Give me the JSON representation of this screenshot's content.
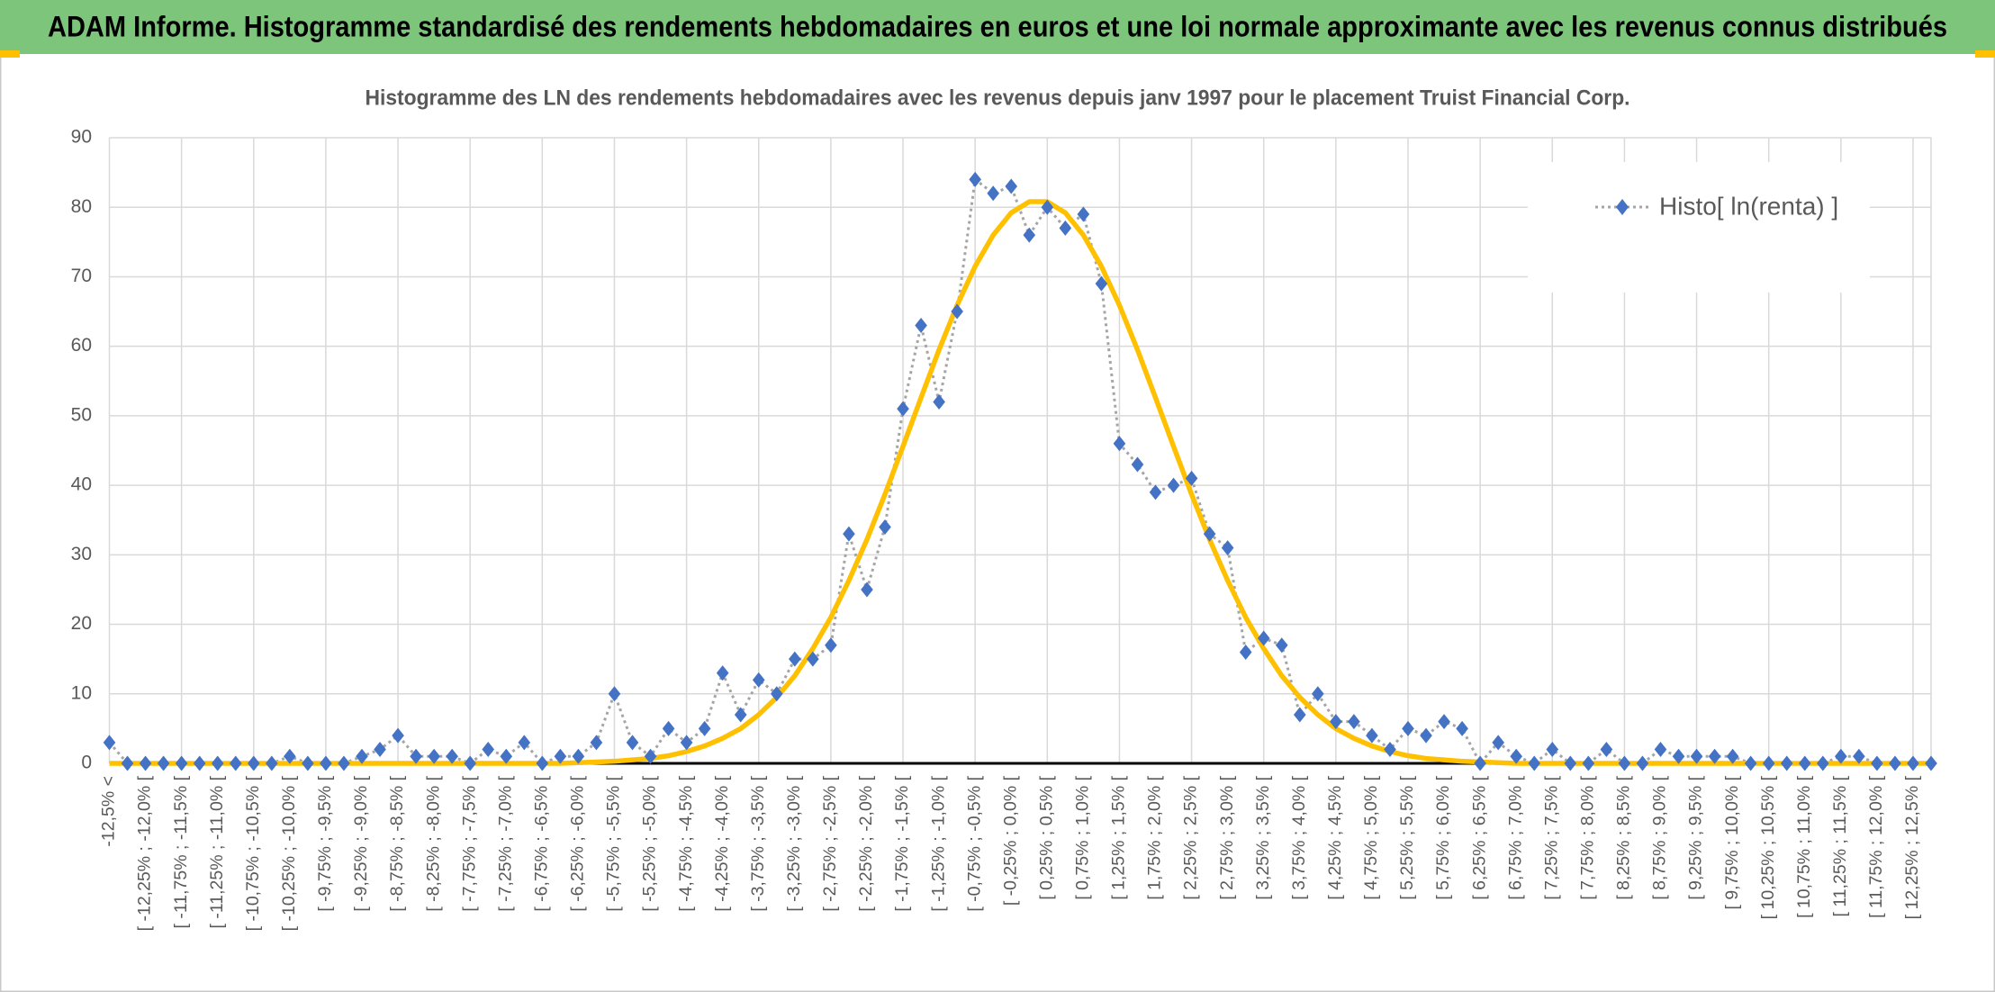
{
  "header": {
    "title": "ADAM Informe. Histogramme standardisé des rendements hebdomadaires en euros et une loi normale approximante avec les revenus connus distribués"
  },
  "chart_data": {
    "type": "line",
    "title": "Histogramme des LN des rendements hebdomadaires avec les revenus depuis janv 1997 pour le placement Truist Financial Corp.",
    "categories": [
      "-12,5% <",
      null,
      "[ -12,25% ; -12,0% [",
      null,
      "[ -11,75% ; -11,5% [",
      null,
      "[ -11,25% ; -11,0% [",
      null,
      "[ -10,75% ; -10,5% [",
      null,
      "[ -10,25% ; -10,0% [",
      null,
      "[ -9,75% ; -9,5% [",
      null,
      "[ -9,25% ; -9,0% [",
      null,
      "[ -8,75% ; -8,5% [",
      null,
      "[ -8,25% ; -8,0% [",
      null,
      "[ -7,75% ; -7,5% [",
      null,
      "[ -7,25% ; -7,0% [",
      null,
      "[ -6,75% ; -6,5% [",
      null,
      "[ -6,25% ; -6,0% [",
      null,
      "[ -5,75% ; -5,5% [",
      null,
      "[ -5,25% ; -5,0% [",
      null,
      "[ -4,75% ; -4,5% [",
      null,
      "[ -4,25% ; -4,0% [",
      null,
      "[ -3,75% ; -3,5% [",
      null,
      "[ -3,25% ; -3,0% [",
      null,
      "[ -2,75% ; -2,5% [",
      null,
      "[ -2,25% ; -2,0% [",
      null,
      "[ -1,75% ; -1,5% [",
      null,
      "[ -1,25% ; -1,0% [",
      null,
      "[ -0,75% ; -0,5% [",
      null,
      "[ -0,25% ; 0,0% [",
      null,
      "[ 0,25% ; 0,5% [",
      null,
      "[ 0,75% ; 1,0% [",
      null,
      "[ 1,25% ; 1,5% [",
      null,
      "[ 1,75% ; 2,0% [",
      null,
      "[ 2,25% ; 2,5% [",
      null,
      "[ 2,75% ; 3,0% [",
      null,
      "[ 3,25% ; 3,5% [",
      null,
      "[ 3,75% ; 4,0% [",
      null,
      "[ 4,25% ; 4,5% [",
      null,
      "[ 4,75% ; 5,0% [",
      null,
      "[ 5,25% ; 5,5% [",
      null,
      "[ 5,75% ; 6,0% [",
      null,
      "[ 6,25% ; 6,5% [",
      null,
      "[ 6,75% ; 7,0% [",
      null,
      "[ 7,25% ; 7,5% [",
      null,
      "[ 7,75% ; 8,0% [",
      null,
      "[ 8,25% ; 8,5% [",
      null,
      "[ 8,75% ; 9,0% [",
      null,
      "[ 9,25% ; 9,5% [",
      null,
      "[ 9,75% ; 10,0% [",
      null,
      "[ 10,25% ; 10,5% [",
      null,
      "[ 10,75% ; 11,0% [",
      null,
      "[ 11,25% ; 11,5% [",
      null,
      "[ 11,75% ; 12,0% [",
      null,
      "[ 12,25% ; 12,5% [",
      null
    ],
    "series": [
      {
        "name": "Histo[ ln(renta) ]",
        "color": "#4472c4",
        "values": [
          3,
          0,
          0,
          0,
          0,
          0,
          0,
          0,
          0,
          0,
          1,
          0,
          0,
          0,
          1,
          2,
          4,
          1,
          1,
          1,
          0,
          2,
          1,
          3,
          0,
          1,
          1,
          3,
          10,
          3,
          1,
          5,
          3,
          5,
          13,
          7,
          12,
          10,
          15,
          15,
          17,
          33,
          25,
          34,
          51,
          63,
          52,
          65,
          84,
          82,
          83,
          76,
          80,
          77,
          79,
          69,
          46,
          43,
          39,
          40,
          41,
          33,
          31,
          16,
          18,
          17,
          7,
          10,
          6,
          6,
          4,
          2,
          5,
          4,
          6,
          5,
          0,
          3,
          1,
          0,
          2,
          0,
          0,
          2,
          0,
          0,
          2,
          1,
          1,
          1,
          1,
          0,
          0,
          0,
          0,
          0,
          1,
          1,
          0,
          0,
          0,
          0
        ]
      },
      {
        "color": "#ffc000",
        "values": [
          0,
          0,
          0,
          0,
          0,
          0,
          0,
          0,
          0,
          0,
          0,
          0,
          0,
          0,
          0,
          0,
          0,
          0,
          0,
          0,
          0,
          0,
          0,
          0,
          0,
          0,
          0.1,
          0.2,
          0.3,
          0.5,
          0.7,
          1.1,
          1.7,
          2.5,
          3.6,
          5.0,
          7.0,
          9.5,
          12.6,
          16.5,
          21.0,
          26.3,
          32.2,
          38.7,
          45.6,
          52.6,
          59.5,
          65.9,
          71.5,
          76.0,
          79.2,
          80.8,
          80.8,
          79.2,
          76.0,
          71.5,
          65.9,
          59.5,
          52.6,
          45.6,
          38.7,
          32.2,
          26.3,
          21.0,
          16.5,
          12.6,
          9.5,
          7.0,
          5.0,
          3.6,
          2.5,
          1.7,
          1.1,
          0.7,
          0.5,
          0.3,
          0.2,
          0.1,
          0,
          0,
          0,
          0,
          0,
          0,
          0,
          0,
          0,
          0,
          0,
          0,
          0,
          0,
          0,
          0,
          0,
          0,
          0,
          0,
          0,
          0,
          0,
          0
        ]
      }
    ],
    "ylim": [
      0,
      90
    ],
    "yticks": [
      0,
      10,
      20,
      30,
      40,
      50,
      60,
      70,
      80,
      90
    ],
    "grid": true
  }
}
